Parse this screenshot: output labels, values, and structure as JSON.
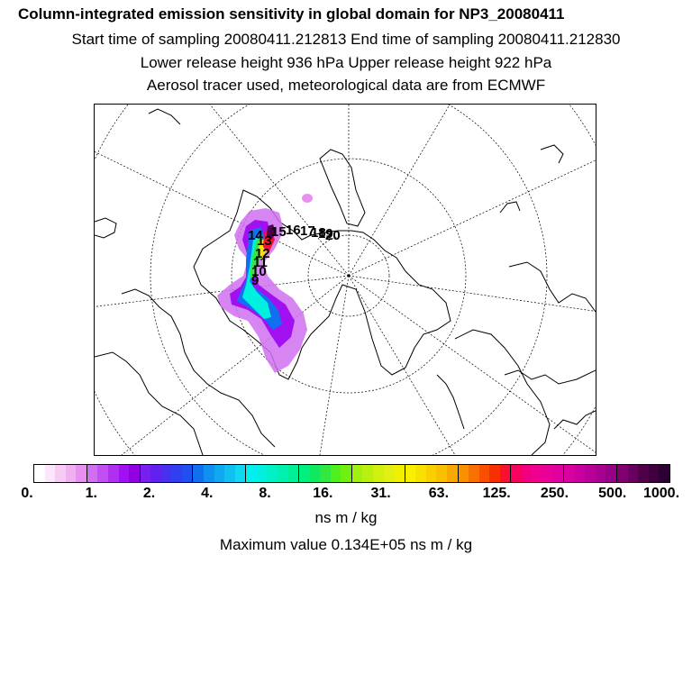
{
  "header": {
    "title": "Column-integrated emission sensitivity in global domain for NP3_20080411",
    "line2": "Start time of sampling 20080411.212813     End time of sampling 20080411.212830",
    "line3": "Lower release height  936 hPa        Upper release height  922 hPa",
    "line4": "Aerosol tracer used, meteorological data are from ECMWF"
  },
  "map": {
    "projection": "polar-stereographic",
    "track_labels": [
      "15",
      "16",
      "17",
      "18",
      "19",
      "20"
    ],
    "inner_track_labels": [
      "14",
      "13",
      "12",
      "11",
      "10",
      "9"
    ]
  },
  "legend": {
    "tick_labels": [
      "0.",
      "1.",
      "2.",
      "4.",
      "8.",
      "16.",
      "31.",
      "63.",
      "125.",
      "250.",
      "500.",
      "1000."
    ],
    "unit": "ns m / kg",
    "max_value": "Maximum value  0.134E+05 ns m / kg",
    "colors": [
      "#ffffff",
      "#fbe6fb",
      "#f6ccf6",
      "#f0b0f0",
      "#e890f0",
      "#d070f0",
      "#c050f0",
      "#b030f0",
      "#a010f0",
      "#9000e0",
      "#7820f0",
      "#6020f0",
      "#4830f0",
      "#3040f0",
      "#2050f0",
      "#1070f0",
      "#1090f0",
      "#10a8f0",
      "#10c0f0",
      "#10d8f0",
      "#00f0f0",
      "#00f0e0",
      "#00f0c8",
      "#00f0b0",
      "#00f098",
      "#00f080",
      "#10e860",
      "#30e840",
      "#50f020",
      "#70f010",
      "#a0f010",
      "#b8f010",
      "#d0f010",
      "#e0f010",
      "#f0f000",
      "#f8f000",
      "#f8e000",
      "#f8d000",
      "#f8c000",
      "#f8a800",
      "#f89000",
      "#f87000",
      "#f85000",
      "#f83000",
      "#f81030",
      "#f80060",
      "#f00080",
      "#f00090",
      "#e80098",
      "#e000a0",
      "#d800a0",
      "#c800a0",
      "#b80098",
      "#a80090",
      "#980088",
      "#800070",
      "#680060",
      "#500048",
      "#400040",
      "#2c0030"
    ]
  }
}
